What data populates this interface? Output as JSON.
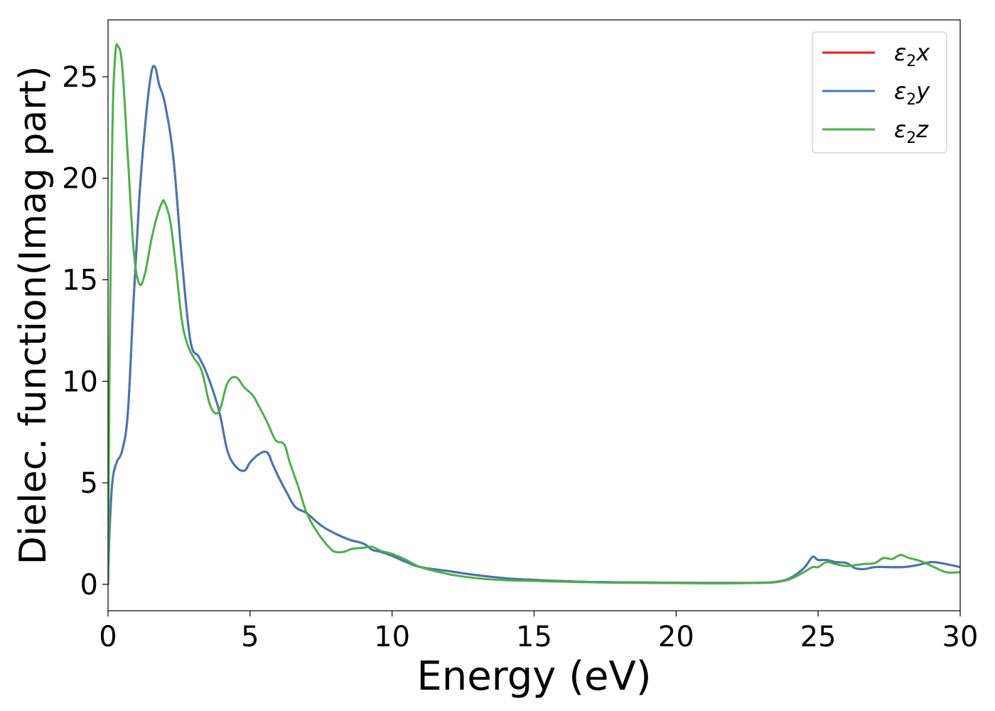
{
  "chart_data": {
    "type": "line",
    "xlabel": "Energy (eV)",
    "ylabel": "Dielec. function(Imag part)",
    "xlim": [
      0,
      30
    ],
    "ylim": [
      -1.3,
      27.8
    ],
    "xticks": [
      0,
      5,
      10,
      15,
      20,
      25,
      30
    ],
    "yticks": [
      0,
      5,
      10,
      15,
      20,
      25
    ],
    "grid": false,
    "legend_position": "top-right",
    "series": [
      {
        "name": "ε2x",
        "legend_base": "ε",
        "legend_sub": "2",
        "legend_var": "x",
        "color": "#e41a1c",
        "x": [
          0,
          0.05,
          0.15,
          0.3,
          0.5,
          0.7,
          0.9,
          1.1,
          1.3,
          1.5,
          1.65,
          1.8,
          2.0,
          2.3,
          2.6,
          2.9,
          3.2,
          3.5,
          3.9,
          4.2,
          4.5,
          4.8,
          5.0,
          5.3,
          5.6,
          5.8,
          6.0,
          6.3,
          6.6,
          7.0,
          7.5,
          8.0,
          8.5,
          9.0,
          9.3,
          9.6,
          10.0,
          10.5,
          11.0,
          12.0,
          13.0,
          14.0,
          15.0,
          16.0,
          17.0,
          18.0,
          19.0,
          20.0,
          21.0,
          22.0,
          23.0,
          23.5,
          24.0,
          24.5,
          24.8,
          25.0,
          25.3,
          25.6,
          26.0,
          26.3,
          26.6,
          27.0,
          27.5,
          28.0,
          28.5,
          29.0,
          29.5,
          30.0
        ],
        "y": [
          0,
          2.5,
          5.0,
          6.0,
          6.6,
          8.5,
          14.0,
          19.0,
          22.5,
          25.0,
          25.5,
          24.6,
          23.7,
          21.0,
          16.0,
          12.0,
          11.2,
          10.3,
          8.6,
          6.6,
          5.8,
          5.6,
          6.0,
          6.4,
          6.5,
          5.9,
          5.3,
          4.5,
          3.8,
          3.5,
          2.9,
          2.5,
          2.2,
          2.0,
          1.7,
          1.6,
          1.4,
          1.1,
          0.85,
          0.65,
          0.45,
          0.3,
          0.22,
          0.16,
          0.12,
          0.1,
          0.09,
          0.08,
          0.07,
          0.07,
          0.08,
          0.12,
          0.3,
          0.8,
          1.35,
          1.2,
          1.2,
          1.1,
          1.05,
          0.8,
          0.75,
          0.85,
          0.85,
          0.85,
          0.95,
          1.1,
          1.0,
          0.85
        ]
      },
      {
        "name": "ε2y",
        "legend_base": "ε",
        "legend_sub": "2",
        "legend_var": "y",
        "color": "#4477b4",
        "x": [
          0,
          0.05,
          0.15,
          0.3,
          0.5,
          0.7,
          0.9,
          1.1,
          1.3,
          1.5,
          1.65,
          1.8,
          2.0,
          2.3,
          2.6,
          2.9,
          3.2,
          3.5,
          3.9,
          4.2,
          4.5,
          4.8,
          5.0,
          5.3,
          5.6,
          5.8,
          6.0,
          6.3,
          6.6,
          7.0,
          7.5,
          8.0,
          8.5,
          9.0,
          9.3,
          9.6,
          10.0,
          10.5,
          11.0,
          12.0,
          13.0,
          14.0,
          15.0,
          16.0,
          17.0,
          18.0,
          19.0,
          20.0,
          21.0,
          22.0,
          23.0,
          23.5,
          24.0,
          24.5,
          24.8,
          25.0,
          25.3,
          25.6,
          26.0,
          26.3,
          26.6,
          27.0,
          27.5,
          28.0,
          28.5,
          29.0,
          29.5,
          30.0
        ],
        "y": [
          0,
          2.5,
          5.0,
          6.0,
          6.6,
          8.5,
          14.0,
          19.0,
          22.5,
          25.0,
          25.5,
          24.6,
          23.7,
          21.0,
          16.0,
          12.0,
          11.2,
          10.3,
          8.6,
          6.6,
          5.8,
          5.6,
          6.0,
          6.4,
          6.5,
          5.9,
          5.3,
          4.5,
          3.8,
          3.5,
          2.9,
          2.5,
          2.2,
          2.0,
          1.7,
          1.6,
          1.4,
          1.1,
          0.85,
          0.65,
          0.45,
          0.3,
          0.22,
          0.16,
          0.12,
          0.1,
          0.09,
          0.08,
          0.07,
          0.07,
          0.08,
          0.12,
          0.3,
          0.8,
          1.35,
          1.2,
          1.2,
          1.1,
          1.05,
          0.8,
          0.75,
          0.85,
          0.85,
          0.85,
          0.95,
          1.1,
          1.0,
          0.85
        ]
      },
      {
        "name": "ε2z",
        "legend_base": "ε",
        "legend_sub": "2",
        "legend_var": "z",
        "color": "#4daf4a",
        "x": [
          0,
          0.05,
          0.15,
          0.25,
          0.35,
          0.5,
          0.7,
          0.9,
          1.1,
          1.3,
          1.5,
          1.7,
          1.9,
          2.0,
          2.2,
          2.4,
          2.6,
          2.8,
          3.0,
          3.3,
          3.6,
          3.9,
          4.2,
          4.5,
          4.8,
          5.1,
          5.3,
          5.6,
          5.9,
          6.2,
          6.4,
          6.7,
          7.0,
          7.4,
          7.8,
          8.0,
          8.3,
          8.6,
          9.0,
          9.3,
          9.6,
          10.0,
          10.5,
          11.0,
          12.0,
          13.0,
          14.0,
          15.0,
          16.0,
          17.0,
          18.0,
          19.0,
          20.0,
          21.0,
          22.0,
          23.0,
          23.5,
          24.0,
          24.5,
          24.8,
          25.0,
          25.3,
          25.6,
          26.0,
          26.3,
          26.6,
          27.0,
          27.3,
          27.6,
          27.9,
          28.2,
          28.6,
          29.0,
          29.5,
          30.0
        ],
        "y": [
          0,
          10.0,
          22.0,
          26.0,
          26.5,
          25.5,
          21.0,
          16.5,
          14.8,
          15.3,
          16.8,
          18.0,
          18.8,
          18.8,
          17.8,
          15.5,
          13.0,
          11.8,
          11.2,
          10.5,
          8.8,
          8.5,
          9.9,
          10.2,
          9.7,
          9.3,
          8.8,
          8.0,
          7.1,
          6.9,
          6.0,
          4.8,
          3.5,
          2.5,
          1.8,
          1.6,
          1.6,
          1.75,
          1.8,
          1.85,
          1.65,
          1.5,
          1.2,
          0.85,
          0.5,
          0.3,
          0.2,
          0.17,
          0.13,
          0.1,
          0.08,
          0.07,
          0.06,
          0.05,
          0.05,
          0.07,
          0.1,
          0.25,
          0.6,
          0.85,
          0.85,
          1.1,
          1.0,
          0.9,
          0.95,
          1.0,
          1.05,
          1.3,
          1.25,
          1.45,
          1.3,
          1.15,
          0.9,
          0.6,
          0.6
        ]
      }
    ]
  }
}
